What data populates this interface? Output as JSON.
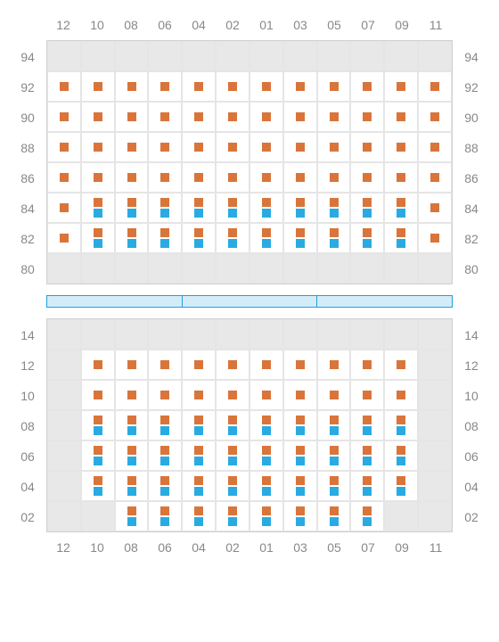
{
  "colors": {
    "orange": "#d9753b",
    "blue": "#29abe2",
    "blank_bg": "#e8e8e8",
    "grid_border": "#d0d0d0",
    "cell_border": "#e5e5e5",
    "label": "#888888",
    "divider_bg": "#d4ecf7",
    "divider_border": "#20a0e0"
  },
  "square_size": 10,
  "column_labels": [
    "12",
    "10",
    "08",
    "06",
    "04",
    "02",
    "01",
    "03",
    "05",
    "07",
    "09",
    "11"
  ],
  "top_grid": {
    "row_labels": [
      "94",
      "92",
      "90",
      "88",
      "86",
      "84",
      "82",
      "80"
    ],
    "cells": [
      [
        {
          "blank": true
        },
        {
          "blank": true
        },
        {
          "blank": true
        },
        {
          "blank": true
        },
        {
          "blank": true
        },
        {
          "blank": true
        },
        {
          "blank": true
        },
        {
          "blank": true
        },
        {
          "blank": true
        },
        {
          "blank": true
        },
        {
          "blank": true
        },
        {
          "blank": true
        }
      ],
      [
        {
          "s": [
            "o"
          ]
        },
        {
          "s": [
            "o"
          ]
        },
        {
          "s": [
            "o"
          ]
        },
        {
          "s": [
            "o"
          ]
        },
        {
          "s": [
            "o"
          ]
        },
        {
          "s": [
            "o"
          ]
        },
        {
          "s": [
            "o"
          ]
        },
        {
          "s": [
            "o"
          ]
        },
        {
          "s": [
            "o"
          ]
        },
        {
          "s": [
            "o"
          ]
        },
        {
          "s": [
            "o"
          ]
        },
        {
          "s": [
            "o"
          ]
        }
      ],
      [
        {
          "s": [
            "o"
          ]
        },
        {
          "s": [
            "o"
          ]
        },
        {
          "s": [
            "o"
          ]
        },
        {
          "s": [
            "o"
          ]
        },
        {
          "s": [
            "o"
          ]
        },
        {
          "s": [
            "o"
          ]
        },
        {
          "s": [
            "o"
          ]
        },
        {
          "s": [
            "o"
          ]
        },
        {
          "s": [
            "o"
          ]
        },
        {
          "s": [
            "o"
          ]
        },
        {
          "s": [
            "o"
          ]
        },
        {
          "s": [
            "o"
          ]
        }
      ],
      [
        {
          "s": [
            "o"
          ]
        },
        {
          "s": [
            "o"
          ]
        },
        {
          "s": [
            "o"
          ]
        },
        {
          "s": [
            "o"
          ]
        },
        {
          "s": [
            "o"
          ]
        },
        {
          "s": [
            "o"
          ]
        },
        {
          "s": [
            "o"
          ]
        },
        {
          "s": [
            "o"
          ]
        },
        {
          "s": [
            "o"
          ]
        },
        {
          "s": [
            "o"
          ]
        },
        {
          "s": [
            "o"
          ]
        },
        {
          "s": [
            "o"
          ]
        }
      ],
      [
        {
          "s": [
            "o"
          ]
        },
        {
          "s": [
            "o"
          ]
        },
        {
          "s": [
            "o"
          ]
        },
        {
          "s": [
            "o"
          ]
        },
        {
          "s": [
            "o"
          ]
        },
        {
          "s": [
            "o"
          ]
        },
        {
          "s": [
            "o"
          ]
        },
        {
          "s": [
            "o"
          ]
        },
        {
          "s": [
            "o"
          ]
        },
        {
          "s": [
            "o"
          ]
        },
        {
          "s": [
            "o"
          ]
        },
        {
          "s": [
            "o"
          ]
        }
      ],
      [
        {
          "s": [
            "o"
          ]
        },
        {
          "s": [
            "o",
            "b"
          ]
        },
        {
          "s": [
            "o",
            "b"
          ]
        },
        {
          "s": [
            "o",
            "b"
          ]
        },
        {
          "s": [
            "o",
            "b"
          ]
        },
        {
          "s": [
            "o",
            "b"
          ]
        },
        {
          "s": [
            "o",
            "b"
          ]
        },
        {
          "s": [
            "o",
            "b"
          ]
        },
        {
          "s": [
            "o",
            "b"
          ]
        },
        {
          "s": [
            "o",
            "b"
          ]
        },
        {
          "s": [
            "o",
            "b"
          ]
        },
        {
          "s": [
            "o"
          ]
        }
      ],
      [
        {
          "s": [
            "o"
          ]
        },
        {
          "s": [
            "o",
            "b"
          ]
        },
        {
          "s": [
            "o",
            "b"
          ]
        },
        {
          "s": [
            "o",
            "b"
          ]
        },
        {
          "s": [
            "o",
            "b"
          ]
        },
        {
          "s": [
            "o",
            "b"
          ]
        },
        {
          "s": [
            "o",
            "b"
          ]
        },
        {
          "s": [
            "o",
            "b"
          ]
        },
        {
          "s": [
            "o",
            "b"
          ]
        },
        {
          "s": [
            "o",
            "b"
          ]
        },
        {
          "s": [
            "o",
            "b"
          ]
        },
        {
          "s": [
            "o"
          ]
        }
      ],
      [
        {
          "blank": true
        },
        {
          "blank": true
        },
        {
          "blank": true
        },
        {
          "blank": true
        },
        {
          "blank": true
        },
        {
          "blank": true
        },
        {
          "blank": true
        },
        {
          "blank": true
        },
        {
          "blank": true
        },
        {
          "blank": true
        },
        {
          "blank": true
        },
        {
          "blank": true
        }
      ]
    ]
  },
  "divider_segments": 3,
  "bottom_grid": {
    "row_labels": [
      "14",
      "12",
      "10",
      "08",
      "06",
      "04",
      "02"
    ],
    "cells": [
      [
        {
          "blank": true
        },
        {
          "blank": true
        },
        {
          "blank": true
        },
        {
          "blank": true
        },
        {
          "blank": true
        },
        {
          "blank": true
        },
        {
          "blank": true
        },
        {
          "blank": true
        },
        {
          "blank": true
        },
        {
          "blank": true
        },
        {
          "blank": true
        },
        {
          "blank": true
        }
      ],
      [
        {
          "blank": true
        },
        {
          "s": [
            "o"
          ]
        },
        {
          "s": [
            "o"
          ]
        },
        {
          "s": [
            "o"
          ]
        },
        {
          "s": [
            "o"
          ]
        },
        {
          "s": [
            "o"
          ]
        },
        {
          "s": [
            "o"
          ]
        },
        {
          "s": [
            "o"
          ]
        },
        {
          "s": [
            "o"
          ]
        },
        {
          "s": [
            "o"
          ]
        },
        {
          "s": [
            "o"
          ]
        },
        {
          "blank": true
        }
      ],
      [
        {
          "blank": true
        },
        {
          "s": [
            "o"
          ]
        },
        {
          "s": [
            "o"
          ]
        },
        {
          "s": [
            "o"
          ]
        },
        {
          "s": [
            "o"
          ]
        },
        {
          "s": [
            "o"
          ]
        },
        {
          "s": [
            "o"
          ]
        },
        {
          "s": [
            "o"
          ]
        },
        {
          "s": [
            "o"
          ]
        },
        {
          "s": [
            "o"
          ]
        },
        {
          "s": [
            "o"
          ]
        },
        {
          "blank": true
        }
      ],
      [
        {
          "blank": true
        },
        {
          "s": [
            "o",
            "b"
          ]
        },
        {
          "s": [
            "o",
            "b"
          ]
        },
        {
          "s": [
            "o",
            "b"
          ]
        },
        {
          "s": [
            "o",
            "b"
          ]
        },
        {
          "s": [
            "o",
            "b"
          ]
        },
        {
          "s": [
            "o",
            "b"
          ]
        },
        {
          "s": [
            "o",
            "b"
          ]
        },
        {
          "s": [
            "o",
            "b"
          ]
        },
        {
          "s": [
            "o",
            "b"
          ]
        },
        {
          "s": [
            "o",
            "b"
          ]
        },
        {
          "blank": true
        }
      ],
      [
        {
          "blank": true
        },
        {
          "s": [
            "o",
            "b"
          ]
        },
        {
          "s": [
            "o",
            "b"
          ]
        },
        {
          "s": [
            "o",
            "b"
          ]
        },
        {
          "s": [
            "o",
            "b"
          ]
        },
        {
          "s": [
            "o",
            "b"
          ]
        },
        {
          "s": [
            "o",
            "b"
          ]
        },
        {
          "s": [
            "o",
            "b"
          ]
        },
        {
          "s": [
            "o",
            "b"
          ]
        },
        {
          "s": [
            "o",
            "b"
          ]
        },
        {
          "s": [
            "o",
            "b"
          ]
        },
        {
          "blank": true
        }
      ],
      [
        {
          "blank": true
        },
        {
          "s": [
            "o",
            "b"
          ]
        },
        {
          "s": [
            "o",
            "b"
          ]
        },
        {
          "s": [
            "o",
            "b"
          ]
        },
        {
          "s": [
            "o",
            "b"
          ]
        },
        {
          "s": [
            "o",
            "b"
          ]
        },
        {
          "s": [
            "o",
            "b"
          ]
        },
        {
          "s": [
            "o",
            "b"
          ]
        },
        {
          "s": [
            "o",
            "b"
          ]
        },
        {
          "s": [
            "o",
            "b"
          ]
        },
        {
          "s": [
            "o",
            "b"
          ]
        },
        {
          "blank": true
        }
      ],
      [
        {
          "blank": true
        },
        {
          "blank": true
        },
        {
          "s": [
            "o",
            "b"
          ]
        },
        {
          "s": [
            "o",
            "b"
          ]
        },
        {
          "s": [
            "o",
            "b"
          ]
        },
        {
          "s": [
            "o",
            "b"
          ]
        },
        {
          "s": [
            "o",
            "b"
          ]
        },
        {
          "s": [
            "o",
            "b"
          ]
        },
        {
          "s": [
            "o",
            "b"
          ]
        },
        {
          "s": [
            "o",
            "b"
          ]
        },
        {
          "blank": true
        },
        {
          "blank": true
        }
      ]
    ]
  }
}
